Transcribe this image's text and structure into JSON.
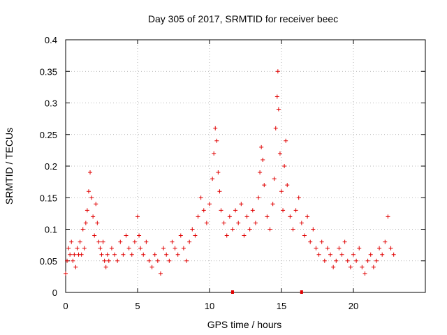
{
  "chart_data": {
    "type": "scatter",
    "title": "Day 305 of 2017, SRMTID for receiver beec",
    "xlabel": "GPS time / hours",
    "ylabel": "SRMTID / TECUs",
    "xlim": [
      0,
      25
    ],
    "ylim": [
      0,
      0.4
    ],
    "xticks": [
      0,
      5,
      10,
      15,
      20
    ],
    "xtick_labels": [
      "0",
      "5",
      "10",
      "15",
      "20"
    ],
    "yticks": [
      0,
      0.05,
      0.1,
      0.15,
      0.2,
      0.25,
      0.3,
      0.35,
      0.4
    ],
    "ytick_labels": [
      "0",
      "0.05",
      "0.1",
      "0.15",
      "0.2",
      "0.25",
      "0.3",
      "0.35",
      "0.4"
    ],
    "grid": true,
    "marker": "plus",
    "color": "#e00000",
    "gap_markers": [
      {
        "x": 11.6,
        "y": 0
      },
      {
        "x": 16.4,
        "y": 0
      }
    ],
    "series": [
      {
        "name": "SRMTID",
        "points": [
          [
            0.0,
            0.03
          ],
          [
            0.1,
            0.05
          ],
          [
            0.2,
            0.07
          ],
          [
            0.3,
            0.06
          ],
          [
            0.4,
            0.08
          ],
          [
            0.5,
            0.05
          ],
          [
            0.6,
            0.06
          ],
          [
            0.7,
            0.04
          ],
          [
            0.8,
            0.07
          ],
          [
            0.9,
            0.06
          ],
          [
            1.0,
            0.08
          ],
          [
            1.1,
            0.06
          ],
          [
            1.2,
            0.1
          ],
          [
            1.3,
            0.07
          ],
          [
            1.4,
            0.11
          ],
          [
            1.5,
            0.13
          ],
          [
            1.6,
            0.16
          ],
          [
            1.7,
            0.19
          ],
          [
            1.8,
            0.15
          ],
          [
            1.9,
            0.12
          ],
          [
            2.0,
            0.09
          ],
          [
            2.1,
            0.14
          ],
          [
            2.2,
            0.11
          ],
          [
            2.3,
            0.08
          ],
          [
            2.4,
            0.07
          ],
          [
            2.5,
            0.06
          ],
          [
            2.6,
            0.08
          ],
          [
            2.7,
            0.05
          ],
          [
            2.8,
            0.04
          ],
          [
            2.9,
            0.06
          ],
          [
            3.0,
            0.05
          ],
          [
            3.2,
            0.07
          ],
          [
            3.4,
            0.06
          ],
          [
            3.6,
            0.05
          ],
          [
            3.8,
            0.08
          ],
          [
            4.0,
            0.06
          ],
          [
            4.2,
            0.09
          ],
          [
            4.4,
            0.07
          ],
          [
            4.6,
            0.06
          ],
          [
            4.8,
            0.08
          ],
          [
            5.0,
            0.12
          ],
          [
            5.1,
            0.09
          ],
          [
            5.2,
            0.07
          ],
          [
            5.4,
            0.06
          ],
          [
            5.6,
            0.08
          ],
          [
            5.8,
            0.05
          ],
          [
            6.0,
            0.04
          ],
          [
            6.2,
            0.06
          ],
          [
            6.4,
            0.05
          ],
          [
            6.6,
            0.03
          ],
          [
            6.8,
            0.07
          ],
          [
            7.0,
            0.06
          ],
          [
            7.2,
            0.05
          ],
          [
            7.4,
            0.08
          ],
          [
            7.6,
            0.07
          ],
          [
            7.8,
            0.06
          ],
          [
            8.0,
            0.09
          ],
          [
            8.2,
            0.07
          ],
          [
            8.4,
            0.05
          ],
          [
            8.6,
            0.08
          ],
          [
            8.8,
            0.1
          ],
          [
            9.0,
            0.09
          ],
          [
            9.2,
            0.12
          ],
          [
            9.4,
            0.15
          ],
          [
            9.6,
            0.13
          ],
          [
            9.8,
            0.11
          ],
          [
            10.0,
            0.14
          ],
          [
            10.2,
            0.18
          ],
          [
            10.3,
            0.22
          ],
          [
            10.4,
            0.26
          ],
          [
            10.5,
            0.24
          ],
          [
            10.6,
            0.19
          ],
          [
            10.7,
            0.16
          ],
          [
            10.8,
            0.13
          ],
          [
            11.0,
            0.11
          ],
          [
            11.2,
            0.09
          ],
          [
            11.4,
            0.12
          ],
          [
            11.6,
            0.1
          ],
          [
            11.8,
            0.13
          ],
          [
            12.0,
            0.11
          ],
          [
            12.2,
            0.14
          ],
          [
            12.4,
            0.09
          ],
          [
            12.6,
            0.12
          ],
          [
            12.8,
            0.1
          ],
          [
            13.0,
            0.13
          ],
          [
            13.2,
            0.11
          ],
          [
            13.4,
            0.15
          ],
          [
            13.5,
            0.19
          ],
          [
            13.6,
            0.23
          ],
          [
            13.7,
            0.21
          ],
          [
            13.8,
            0.17
          ],
          [
            14.0,
            0.12
          ],
          [
            14.2,
            0.1
          ],
          [
            14.4,
            0.14
          ],
          [
            14.5,
            0.18
          ],
          [
            14.6,
            0.26
          ],
          [
            14.7,
            0.31
          ],
          [
            14.75,
            0.35
          ],
          [
            14.8,
            0.29
          ],
          [
            14.9,
            0.22
          ],
          [
            15.0,
            0.16
          ],
          [
            15.1,
            0.13
          ],
          [
            15.2,
            0.2
          ],
          [
            15.3,
            0.24
          ],
          [
            15.4,
            0.17
          ],
          [
            15.6,
            0.12
          ],
          [
            15.8,
            0.1
          ],
          [
            16.0,
            0.13
          ],
          [
            16.2,
            0.15
          ],
          [
            16.4,
            0.11
          ],
          [
            16.6,
            0.09
          ],
          [
            16.8,
            0.12
          ],
          [
            17.0,
            0.08
          ],
          [
            17.2,
            0.1
          ],
          [
            17.4,
            0.07
          ],
          [
            17.6,
            0.06
          ],
          [
            17.8,
            0.08
          ],
          [
            18.0,
            0.05
          ],
          [
            18.2,
            0.07
          ],
          [
            18.4,
            0.06
          ],
          [
            18.6,
            0.04
          ],
          [
            18.8,
            0.05
          ],
          [
            19.0,
            0.07
          ],
          [
            19.2,
            0.06
          ],
          [
            19.4,
            0.08
          ],
          [
            19.6,
            0.05
          ],
          [
            19.8,
            0.04
          ],
          [
            20.0,
            0.06
          ],
          [
            20.2,
            0.05
          ],
          [
            20.4,
            0.07
          ],
          [
            20.6,
            0.04
          ],
          [
            20.8,
            0.03
          ],
          [
            21.0,
            0.05
          ],
          [
            21.2,
            0.06
          ],
          [
            21.4,
            0.04
          ],
          [
            21.6,
            0.05
          ],
          [
            21.8,
            0.07
          ],
          [
            22.0,
            0.06
          ],
          [
            22.2,
            0.08
          ],
          [
            22.4,
            0.12
          ],
          [
            22.6,
            0.07
          ],
          [
            22.8,
            0.06
          ]
        ]
      }
    ]
  }
}
